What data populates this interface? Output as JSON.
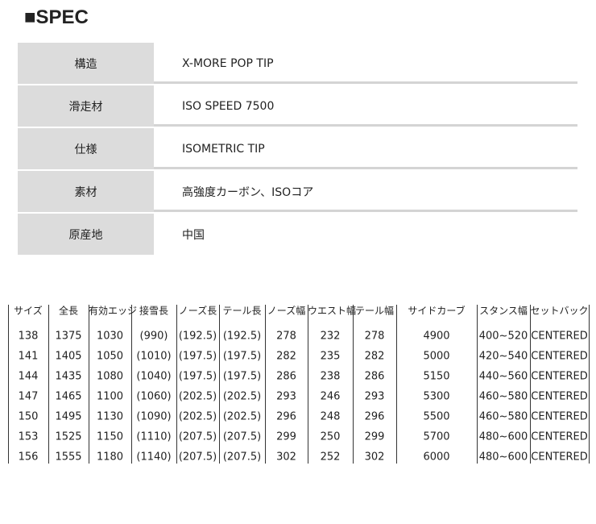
{
  "header": {
    "title": "■SPEC"
  },
  "spec": {
    "rows": [
      [
        "構造",
        "X-MORE POP TIP"
      ],
      [
        "滑走材",
        "ISO SPEED 7500"
      ],
      [
        "仕様",
        "ISOMETRIC TIP"
      ],
      [
        "素材",
        "高強度カーボン、ISOコア"
      ],
      [
        "原産地",
        "中国"
      ]
    ]
  },
  "table": {
    "columns": [
      "サイズ",
      "全長",
      "有効エッジ",
      "接雪長",
      "ノーズ長",
      "テール長",
      "ノーズ幅",
      "ウエスト幅",
      "テール幅",
      "サイドカーブ",
      "スタンス幅",
      "セットバック"
    ],
    "rows": [
      [
        "138",
        "1375",
        "1030",
        "(990)",
        "(192.5)",
        "(192.5)",
        "278",
        "232",
        "278",
        "4900",
        "400~520",
        "CENTERED"
      ],
      [
        "141",
        "1405",
        "1050",
        "(1010)",
        "(197.5)",
        "(197.5)",
        "282",
        "235",
        "282",
        "5000",
        "420~540",
        "CENTERED"
      ],
      [
        "144",
        "1435",
        "1080",
        "(1040)",
        "(197.5)",
        "(197.5)",
        "286",
        "238",
        "286",
        "5150",
        "440~560",
        "CENTERED"
      ],
      [
        "147",
        "1465",
        "1100",
        "(1060)",
        "(202.5)",
        "(202.5)",
        "293",
        "246",
        "293",
        "5300",
        "460~580",
        "CENTERED"
      ],
      [
        "150",
        "1495",
        "1130",
        "(1090)",
        "(202.5)",
        "(202.5)",
        "296",
        "248",
        "296",
        "5500",
        "460~580",
        "CENTERED"
      ],
      [
        "153",
        "1525",
        "1150",
        "(1110)",
        "(207.5)",
        "(207.5)",
        "299",
        "250",
        "299",
        "5700",
        "480~600",
        "CENTERED"
      ],
      [
        "156",
        "1555",
        "1180",
        "(1140)",
        "(207.5)",
        "(207.5)",
        "302",
        "252",
        "302",
        "6000",
        "480~600",
        "CENTERED"
      ]
    ]
  }
}
